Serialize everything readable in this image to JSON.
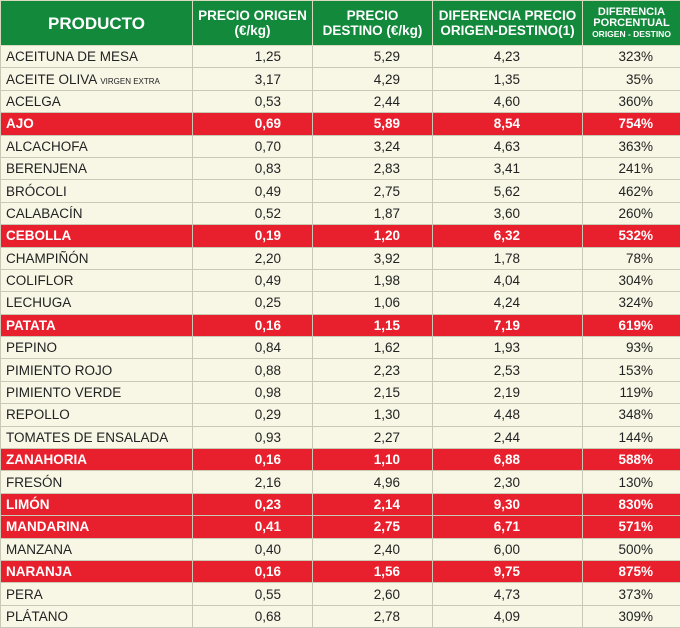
{
  "table": {
    "headers": [
      {
        "text": "PRODUCTO"
      },
      {
        "text": "PRECIO ORIGEN (€/kg)"
      },
      {
        "text": "PRECIO DESTINO (€/kg)"
      },
      {
        "text": "DIFERENCIA PRECIO ORIGEN-DESTINO(1)"
      },
      {
        "text": "DIFERENCIA PORCENTUAL",
        "small": "ORIGEN - DESTINO"
      }
    ],
    "rows": [
      {
        "highlight": false,
        "cells": [
          {
            "text": "ACEITUNA DE MESA"
          },
          "1,25",
          "5,29",
          "4,23",
          "323%"
        ]
      },
      {
        "highlight": false,
        "cells": [
          {
            "text": "ACEITE OLIVA",
            "small": "VIRGEN EXTRA"
          },
          "3,17",
          "4,29",
          "1,35",
          "35%"
        ]
      },
      {
        "highlight": false,
        "cells": [
          {
            "text": "ACELGA"
          },
          "0,53",
          "2,44",
          "4,60",
          "360%"
        ]
      },
      {
        "highlight": true,
        "cells": [
          {
            "text": "AJO"
          },
          "0,69",
          "5,89",
          "8,54",
          "754%"
        ]
      },
      {
        "highlight": false,
        "cells": [
          {
            "text": "ALCACHOFA"
          },
          "0,70",
          "3,24",
          "4,63",
          "363%"
        ]
      },
      {
        "highlight": false,
        "cells": [
          {
            "text": "BERENJENA"
          },
          "0,83",
          "2,83",
          "3,41",
          "241%"
        ]
      },
      {
        "highlight": false,
        "cells": [
          {
            "text": "BRÓCOLI"
          },
          "0,49",
          "2,75",
          "5,62",
          "462%"
        ]
      },
      {
        "highlight": false,
        "cells": [
          {
            "text": "CALABACÍN"
          },
          "0,52",
          "1,87",
          "3,60",
          "260%"
        ]
      },
      {
        "highlight": true,
        "cells": [
          {
            "text": "CEBOLLA"
          },
          "0,19",
          "1,20",
          "6,32",
          "532%"
        ]
      },
      {
        "highlight": false,
        "cells": [
          {
            "text": "CHAMPIÑÓN"
          },
          "2,20",
          "3,92",
          "1,78",
          "78%"
        ]
      },
      {
        "highlight": false,
        "cells": [
          {
            "text": "COLIFLOR"
          },
          "0,49",
          "1,98",
          "4,04",
          "304%"
        ]
      },
      {
        "highlight": false,
        "cells": [
          {
            "text": "LECHUGA"
          },
          "0,25",
          "1,06",
          "4,24",
          "324%"
        ]
      },
      {
        "highlight": true,
        "cells": [
          {
            "text": "PATATA"
          },
          "0,16",
          "1,15",
          "7,19",
          "619%"
        ]
      },
      {
        "highlight": false,
        "cells": [
          {
            "text": "PEPINO"
          },
          "0,84",
          "1,62",
          "1,93",
          "93%"
        ]
      },
      {
        "highlight": false,
        "cells": [
          {
            "text": "PIMIENTO ROJO"
          },
          "0,88",
          "2,23",
          "2,53",
          "153%"
        ]
      },
      {
        "highlight": false,
        "cells": [
          {
            "text": "PIMIENTO VERDE"
          },
          "0,98",
          "2,15",
          "2,19",
          "119%"
        ]
      },
      {
        "highlight": false,
        "cells": [
          {
            "text": "REPOLLO"
          },
          "0,29",
          "1,30",
          "4,48",
          "348%"
        ]
      },
      {
        "highlight": false,
        "cells": [
          {
            "text": "TOMATES DE ENSALADA"
          },
          "0,93",
          "2,27",
          "2,44",
          "144%"
        ]
      },
      {
        "highlight": true,
        "cells": [
          {
            "text": "ZANAHORIA"
          },
          "0,16",
          "1,10",
          "6,88",
          "588%"
        ]
      },
      {
        "highlight": false,
        "cells": [
          {
            "text": "FRESÓN"
          },
          "2,16",
          "4,96",
          "2,30",
          "130%"
        ]
      },
      {
        "highlight": true,
        "cells": [
          {
            "text": "LIMÓN"
          },
          "0,23",
          "2,14",
          "9,30",
          "830%"
        ]
      },
      {
        "highlight": true,
        "cells": [
          {
            "text": "MANDARINA"
          },
          "0,41",
          "2,75",
          "6,71",
          "571%"
        ]
      },
      {
        "highlight": false,
        "cells": [
          {
            "text": "MANZANA"
          },
          "0,40",
          "2,40",
          "6,00",
          "500%"
        ]
      },
      {
        "highlight": true,
        "cells": [
          {
            "text": "NARANJA"
          },
          "0,16",
          "1,56",
          "9,75",
          "875%"
        ]
      },
      {
        "highlight": false,
        "cells": [
          {
            "text": "PERA"
          },
          "0,55",
          "2,60",
          "4,73",
          "373%"
        ]
      },
      {
        "highlight": false,
        "cells": [
          {
            "text": "PLÁTANO"
          },
          "0,68",
          "2,78",
          "4,09",
          "309%"
        ]
      }
    ]
  }
}
